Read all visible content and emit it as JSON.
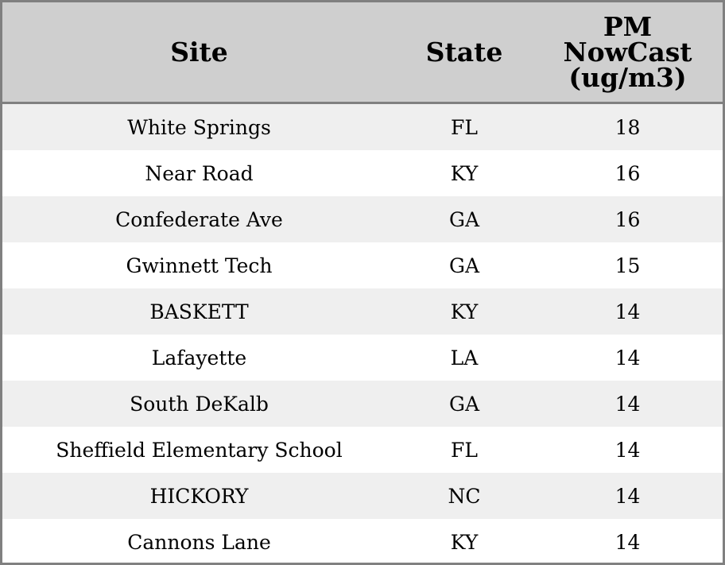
{
  "chart_data": {
    "type": "table",
    "columns": [
      "Site",
      "State",
      "PM NowCast (ug/m3)"
    ],
    "header_lines": {
      "site": [
        "Site"
      ],
      "state": [
        "State"
      ],
      "pm": [
        "PM",
        "NowCast",
        "(ug/m3)"
      ]
    },
    "rows": [
      {
        "site": "White Springs",
        "state": "FL",
        "pm": "18"
      },
      {
        "site": "Near Road",
        "state": "KY",
        "pm": "16"
      },
      {
        "site": "Confederate Ave",
        "state": "GA",
        "pm": "16"
      },
      {
        "site": "Gwinnett Tech",
        "state": "GA",
        "pm": "15"
      },
      {
        "site": "BASKETT",
        "state": "KY",
        "pm": "14"
      },
      {
        "site": "Lafayette",
        "state": "LA",
        "pm": "14"
      },
      {
        "site": "South DeKalb",
        "state": "GA",
        "pm": "14"
      },
      {
        "site": "Sheffield Elementary School",
        "state": "FL",
        "pm": "14"
      },
      {
        "site": "HICKORY",
        "state": "NC",
        "pm": "14"
      },
      {
        "site": "Cannons Lane",
        "state": "KY",
        "pm": "14"
      }
    ],
    "colors": {
      "header_bg": "#cfcfcf",
      "row_alt_bg": "#efefef",
      "row_bg": "#ffffff",
      "border": "#808080"
    }
  }
}
